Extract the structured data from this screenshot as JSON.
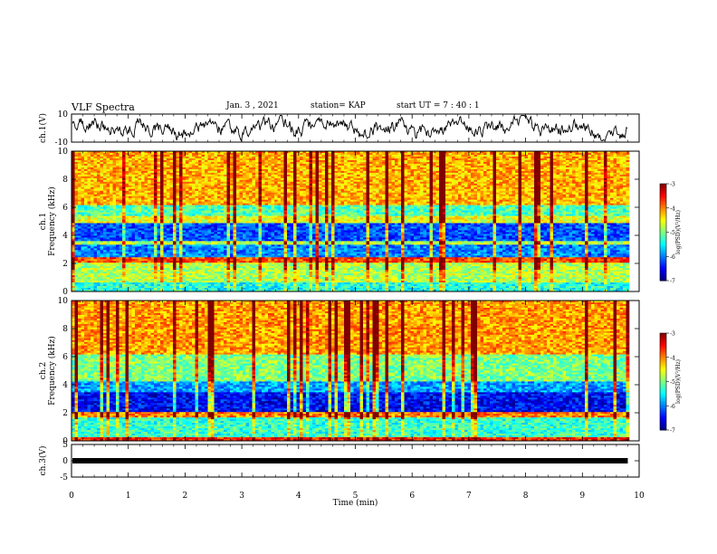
{
  "header": {
    "title": "VLF Spectra",
    "date": "Jan. 3 , 2021",
    "station": "station= KAP",
    "start": "start UT = 7 : 40 : 1"
  },
  "chart_data": [
    {
      "type": "line",
      "ylabel": "ch.1(V)",
      "ylim": [
        -10,
        10
      ],
      "yticks": [
        "10",
        "-10"
      ],
      "xlim": [
        0,
        10
      ]
    },
    {
      "type": "heatmap",
      "ylabel_line1": "ch.1",
      "ylabel_line2": "Frequency (kHz)",
      "ylim": [
        0,
        10
      ],
      "yticks": [
        "0",
        "2",
        "4",
        "6",
        "8",
        "10"
      ],
      "xlim": [
        0,
        10
      ],
      "data_end_min": 9.8,
      "colorbar": {
        "label": "log(PSD)(V²/Hz)",
        "range": [
          -7,
          -3
        ],
        "ticks": [
          "-3",
          "-4",
          "-5",
          "-6",
          "-7"
        ]
      }
    },
    {
      "type": "heatmap",
      "ylabel_line1": "ch.2",
      "ylabel_line2": "Frequency (kHz)",
      "ylim": [
        0,
        10
      ],
      "yticks": [
        "0",
        "2",
        "4",
        "6",
        "8",
        "10"
      ],
      "xlim": [
        0,
        10
      ],
      "data_end_min": 9.8,
      "colorbar": {
        "label": "log(PSD)(V²/Hz)",
        "range": [
          -7,
          -3
        ],
        "ticks": [
          "-3",
          "-4",
          "-5",
          "-6",
          "-7"
        ]
      }
    },
    {
      "type": "line",
      "ylabel": "ch.3(V)",
      "ylim": [
        -5,
        5
      ],
      "yticks": [
        "5",
        "0",
        "-5"
      ],
      "xlim": [
        0,
        10
      ],
      "xlabel": "Time (min)",
      "xticks": [
        "0",
        "1",
        "2",
        "3",
        "4",
        "5",
        "6",
        "7",
        "8",
        "9",
        "10"
      ]
    }
  ]
}
